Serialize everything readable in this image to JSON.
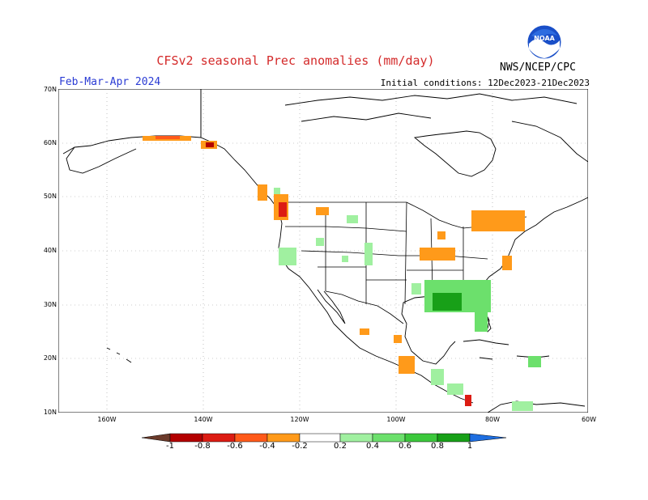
{
  "header": {
    "title": "CFSv2 seasonal Prec anomalies (mm/day)",
    "period": "Feb-Mar-Apr 2024",
    "initial_conditions": "Initial conditions: 12Dec2023-21Dec2023",
    "agency": "NWS/NCEP/CPC",
    "logo_text": "NOAA"
  },
  "map": {
    "lat_labels": [
      "70N",
      "60N",
      "50N",
      "40N",
      "30N",
      "20N",
      "10N"
    ],
    "lon_labels": [
      "160W",
      "140W",
      "120W",
      "100W",
      "80W",
      "60W"
    ],
    "colors": {
      "neg_1": "#6b3a2a",
      "neg_08": "#b30000",
      "neg_06": "#dc1c13",
      "neg_04": "#ff5a1a",
      "neg_02": "#ff9a1a",
      "pos_02": "#a0f0a0",
      "pos_04": "#6ce06c",
      "pos_06": "#3cc83c",
      "pos_08": "#18a018",
      "pos_1": "#1e6ee0"
    }
  },
  "colorbar": {
    "labels": [
      "-1",
      "-0.8",
      "-0.6",
      "-0.4",
      "-0.2",
      "0.2",
      "0.4",
      "0.6",
      "0.8",
      "1"
    ]
  }
}
